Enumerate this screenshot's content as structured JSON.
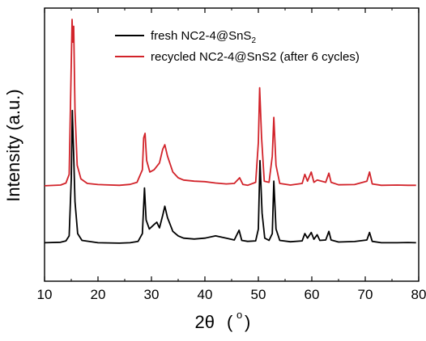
{
  "chart_data": {
    "type": "line",
    "xlabel": "2θ",
    "xlabel_unit": "o",
    "ylabel": "Intensity (a.u.)",
    "xlim": [
      10,
      80
    ],
    "ylim": [
      0,
      100
    ],
    "x_ticks": [
      10,
      20,
      30,
      40,
      50,
      60,
      70,
      80
    ],
    "x_tick_labels": [
      "10",
      "20",
      "30",
      "40",
      "50",
      "60",
      "70",
      "80"
    ],
    "y_tick_labels": [],
    "legend_position": "top-right",
    "series": [
      {
        "name": "fresh NC2-4@SnS",
        "name_subscript": "2",
        "color": "#000000",
        "points": [
          [
            10,
            2
          ],
          [
            13,
            2.2
          ],
          [
            14,
            2.8
          ],
          [
            14.6,
            5
          ],
          [
            15.0,
            30
          ],
          [
            15.2,
            60
          ],
          [
            15.4,
            45
          ],
          [
            15.7,
            20
          ],
          [
            16.2,
            6
          ],
          [
            17,
            3
          ],
          [
            20,
            2
          ],
          [
            24,
            1.8
          ],
          [
            26,
            2
          ],
          [
            27.5,
            2.6
          ],
          [
            28.3,
            6
          ],
          [
            28.7,
            26
          ],
          [
            29.0,
            12
          ],
          [
            29.6,
            8
          ],
          [
            30.5,
            10
          ],
          [
            31.0,
            11
          ],
          [
            31.5,
            8.5
          ],
          [
            32.1,
            14
          ],
          [
            32.5,
            18
          ],
          [
            33,
            13
          ],
          [
            34,
            7
          ],
          [
            35,
            5
          ],
          [
            36,
            4
          ],
          [
            38,
            3.6
          ],
          [
            40,
            4
          ],
          [
            42,
            5
          ],
          [
            44,
            4
          ],
          [
            45.5,
            3.2
          ],
          [
            46.4,
            7.5
          ],
          [
            46.9,
            3
          ],
          [
            48,
            2.6
          ],
          [
            49.5,
            2.8
          ],
          [
            50.0,
            8
          ],
          [
            50.3,
            38
          ],
          [
            50.7,
            15
          ],
          [
            51.2,
            4
          ],
          [
            52,
            3
          ],
          [
            52.6,
            6
          ],
          [
            52.9,
            29
          ],
          [
            53.3,
            8
          ],
          [
            54,
            3
          ],
          [
            56,
            2.4
          ],
          [
            58.2,
            2.8
          ],
          [
            58.7,
            6
          ],
          [
            59.2,
            4
          ],
          [
            59.9,
            6.5
          ],
          [
            60.4,
            3.5
          ],
          [
            61.0,
            5.5
          ],
          [
            61.5,
            3
          ],
          [
            62.6,
            3.2
          ],
          [
            63.2,
            7
          ],
          [
            63.6,
            3.2
          ],
          [
            65,
            2.3
          ],
          [
            68,
            2.5
          ],
          [
            70.3,
            3.2
          ],
          [
            70.8,
            6.5
          ],
          [
            71.3,
            2.6
          ],
          [
            73,
            2
          ],
          [
            76,
            2
          ],
          [
            78,
            2.1
          ],
          [
            79.5,
            2
          ]
        ]
      },
      {
        "name": "recycled NC2-4@SnS2 (after 6 cycles)",
        "color": "#d2232a",
        "points": [
          [
            10,
            27
          ],
          [
            13,
            27.3
          ],
          [
            14,
            28.2
          ],
          [
            14.6,
            32
          ],
          [
            14.95,
            75
          ],
          [
            15.15,
            100
          ],
          [
            15.3,
            90
          ],
          [
            15.45,
            97
          ],
          [
            15.7,
            60
          ],
          [
            16.1,
            36
          ],
          [
            16.8,
            30
          ],
          [
            18,
            28
          ],
          [
            20,
            27.5
          ],
          [
            24,
            27.2
          ],
          [
            26,
            27.6
          ],
          [
            27.3,
            28.5
          ],
          [
            28.3,
            34
          ],
          [
            28.55,
            48
          ],
          [
            28.8,
            50
          ],
          [
            29.1,
            38
          ],
          [
            29.7,
            33
          ],
          [
            30.5,
            34
          ],
          [
            31.5,
            37
          ],
          [
            32.1,
            43
          ],
          [
            32.5,
            45
          ],
          [
            33,
            40
          ],
          [
            34,
            33
          ],
          [
            35,
            30.5
          ],
          [
            36,
            29.5
          ],
          [
            38,
            29
          ],
          [
            40,
            28.8
          ],
          [
            42,
            28.2
          ],
          [
            44,
            27.8
          ],
          [
            45.5,
            28
          ],
          [
            46.5,
            30.5
          ],
          [
            47.1,
            27.6
          ],
          [
            48,
            27.2
          ],
          [
            49.5,
            28.5
          ],
          [
            50.0,
            46
          ],
          [
            50.25,
            70
          ],
          [
            50.6,
            48
          ],
          [
            51.1,
            29
          ],
          [
            52,
            28.5
          ],
          [
            52.6,
            40
          ],
          [
            52.9,
            57
          ],
          [
            53.3,
            36
          ],
          [
            54,
            28
          ],
          [
            56,
            27.3
          ],
          [
            58.2,
            28
          ],
          [
            58.7,
            32
          ],
          [
            59.2,
            29
          ],
          [
            59.9,
            33
          ],
          [
            60.4,
            28.5
          ],
          [
            61.0,
            29.5
          ],
          [
            62.6,
            28.5
          ],
          [
            63.2,
            32.5
          ],
          [
            63.6,
            28.5
          ],
          [
            65,
            27.4
          ],
          [
            68,
            27.5
          ],
          [
            70.3,
            29
          ],
          [
            70.8,
            33
          ],
          [
            71.3,
            27.8
          ],
          [
            73,
            27.2
          ],
          [
            76,
            27.3
          ],
          [
            78,
            27.2
          ],
          [
            79.5,
            27.2
          ]
        ]
      }
    ]
  }
}
